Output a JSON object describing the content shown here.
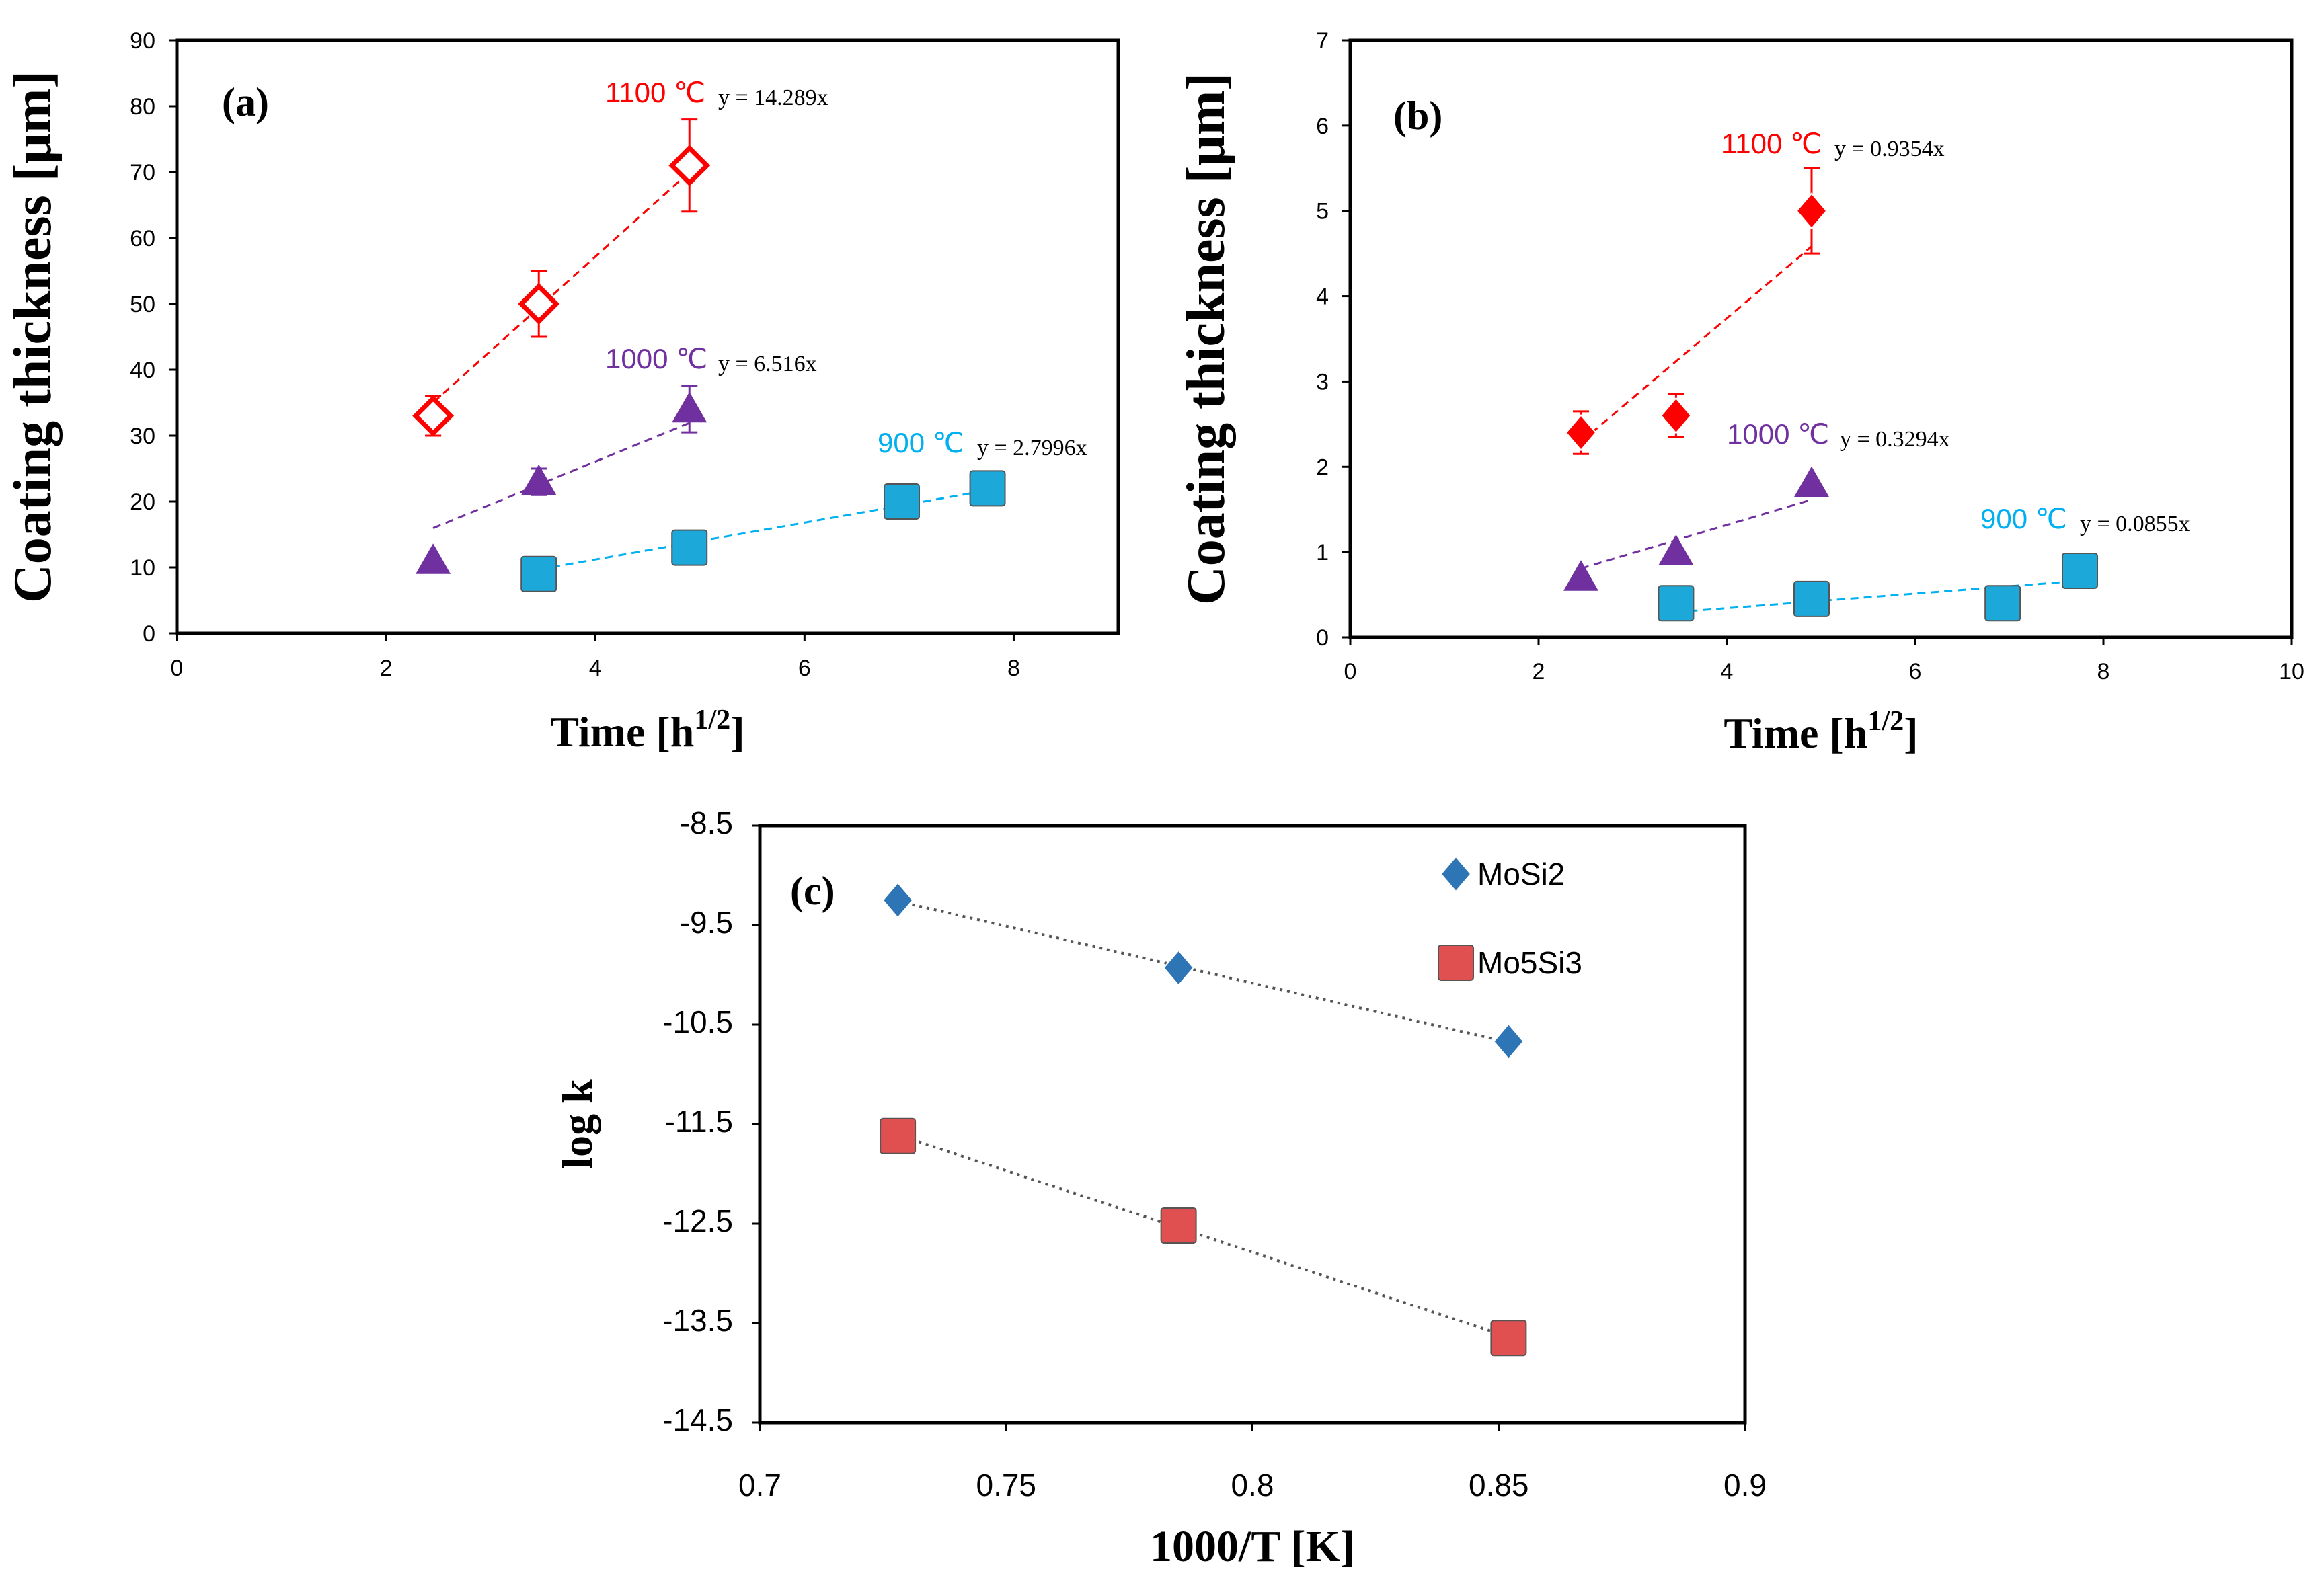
{
  "colors": {
    "red": "#FF0000",
    "purple": "#7030A0",
    "cyan": "#00B0F0",
    "cyan_fill": "#1CA8D8",
    "blue": "#2E75B6",
    "salmon": "#E05050",
    "trend_gray": "#555555"
  },
  "chart_data": [
    {
      "panel": "(a)",
      "type": "scatter",
      "xlabel": "Time [h",
      "xlabel_sup": "1/2",
      "xlabel_end": "]",
      "ylabel": "Coating thickness [μm]",
      "xlim": [
        0,
        9
      ],
      "ylim": [
        0,
        90
      ],
      "xticks": [
        "0",
        "2",
        "4",
        "6",
        "8"
      ],
      "yticks": [
        "0",
        "10",
        "20",
        "30",
        "40",
        "50",
        "60",
        "70",
        "80",
        "90"
      ],
      "series": [
        {
          "name": "1100 ℃",
          "equation": "y = 14.289x",
          "slope": 14.289,
          "marker": "diamond-open",
          "color_key": "red",
          "points": [
            {
              "x": 2.45,
              "y": 33,
              "err": 3
            },
            {
              "x": 3.46,
              "y": 50,
              "err": 5
            },
            {
              "x": 4.9,
              "y": 71,
              "err": 7
            }
          ],
          "fit_range": [
            2.45,
            4.9
          ]
        },
        {
          "name": "1000 ℃",
          "equation": "y = 6.516x",
          "slope": 6.516,
          "marker": "triangle",
          "color_key": "purple",
          "points": [
            {
              "x": 2.45,
              "y": 11,
              "err": 0
            },
            {
              "x": 3.46,
              "y": 23,
              "err": 2
            },
            {
              "x": 4.9,
              "y": 34,
              "err": 3.5
            }
          ],
          "fit_range": [
            2.45,
            4.9
          ]
        },
        {
          "name": "900 ℃",
          "equation": "y = 2.7996x",
          "slope": 2.7996,
          "marker": "square",
          "color_key": "cyan",
          "points": [
            {
              "x": 3.46,
              "y": 9,
              "err": 0.5
            },
            {
              "x": 4.9,
              "y": 13,
              "err": 0.5
            },
            {
              "x": 6.93,
              "y": 20,
              "err": 1.5
            },
            {
              "x": 7.75,
              "y": 22,
              "err": 2
            }
          ],
          "fit_range": [
            3.46,
            7.75
          ]
        }
      ]
    },
    {
      "panel": "(b)",
      "type": "scatter",
      "xlabel": "Time [h",
      "xlabel_sup": "1/2",
      "xlabel_end": "]",
      "ylabel": "Coating thickness [μm]",
      "xlim": [
        0,
        10
      ],
      "ylim": [
        0,
        7
      ],
      "xticks": [
        "0",
        "2",
        "4",
        "6",
        "8",
        "10"
      ],
      "yticks": [
        "0",
        "1",
        "2",
        "3",
        "4",
        "5",
        "6",
        "7"
      ],
      "series": [
        {
          "name": "1100 ℃",
          "equation": "y = 0.9354x",
          "slope": 0.9354,
          "marker": "diamond",
          "color_key": "red",
          "points": [
            {
              "x": 2.45,
              "y": 2.4,
              "err": 0.25
            },
            {
              "x": 3.46,
              "y": 2.6,
              "err": 0.25
            },
            {
              "x": 4.9,
              "y": 5.0,
              "err": 0.5
            }
          ],
          "fit_range": [
            2.45,
            4.9
          ]
        },
        {
          "name": "1000 ℃",
          "equation": "y = 0.3294x",
          "slope": 0.3294,
          "marker": "triangle",
          "color_key": "purple",
          "points": [
            {
              "x": 2.45,
              "y": 0.7,
              "err": 0
            },
            {
              "x": 3.46,
              "y": 1.0,
              "err": 0
            },
            {
              "x": 4.9,
              "y": 1.8,
              "err": 0
            }
          ],
          "fit_range": [
            2.45,
            4.9
          ]
        },
        {
          "name": "900 ℃",
          "equation": "y = 0.0855x",
          "slope": 0.0855,
          "marker": "square",
          "color_key": "cyan",
          "points": [
            {
              "x": 3.46,
              "y": 0.4,
              "err": 0
            },
            {
              "x": 4.9,
              "y": 0.45,
              "err": 0
            },
            {
              "x": 6.93,
              "y": 0.4,
              "err": 0
            },
            {
              "x": 7.75,
              "y": 0.78,
              "err": 0
            }
          ],
          "fit_range": [
            3.46,
            7.75
          ]
        }
      ]
    },
    {
      "panel": "(c)",
      "type": "scatter",
      "xlabel": "1000/T [K]",
      "ylabel": "log k",
      "xlim": [
        0.7,
        0.9
      ],
      "ylim": [
        -14.5,
        -8.5
      ],
      "xticks": [
        "0.7",
        "0.75",
        "0.8",
        "0.85",
        "0.9"
      ],
      "yticks": [
        "-8.5",
        "-9.5",
        "-10.5",
        "-11.5",
        "-12.5",
        "-13.5",
        "-14.5"
      ],
      "legend_position": "top-right",
      "series": [
        {
          "name": "MoSi2",
          "marker": "diamond",
          "color_key": "blue",
          "points": [
            {
              "x": 0.728,
              "y": -9.25
            },
            {
              "x": 0.785,
              "y": -9.93
            },
            {
              "x": 0.852,
              "y": -10.67
            }
          ]
        },
        {
          "name": "Mo5Si3",
          "marker": "square",
          "color_key": "salmon",
          "points": [
            {
              "x": 0.728,
              "y": -11.62
            },
            {
              "x": 0.785,
              "y": -12.52
            },
            {
              "x": 0.852,
              "y": -13.65
            }
          ]
        }
      ]
    }
  ]
}
